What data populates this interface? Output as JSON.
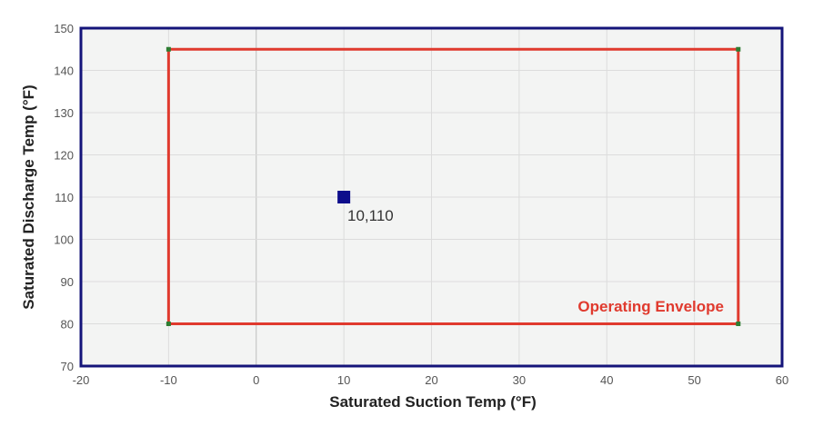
{
  "chart_data": {
    "type": "scatter",
    "title": "",
    "xlabel": "Saturated Suction Temp (°F)",
    "ylabel": "Saturated Discharge Temp (°F)",
    "xlim": [
      -20,
      60
    ],
    "ylim": [
      70,
      150
    ],
    "x_ticks": [
      -20,
      -10,
      0,
      10,
      20,
      30,
      40,
      50,
      60
    ],
    "y_ticks": [
      70,
      80,
      90,
      100,
      110,
      120,
      130,
      140,
      150
    ],
    "grid": true,
    "envelope": {
      "name": "Operating Envelope",
      "color": "#e03a2e",
      "vertex_color": "#2e7d32",
      "points": [
        [
          -10,
          145
        ],
        [
          55,
          145
        ],
        [
          55,
          80
        ],
        [
          -10,
          80
        ]
      ]
    },
    "point": {
      "x": 10,
      "y": 110,
      "label": "10,110",
      "color": "#0d0d8c"
    },
    "colors": {
      "plot_background": "#f3f4f3",
      "frame": "#14147a",
      "gridline": "#dcdcdc",
      "zero_line": "#bdbdbd"
    }
  }
}
